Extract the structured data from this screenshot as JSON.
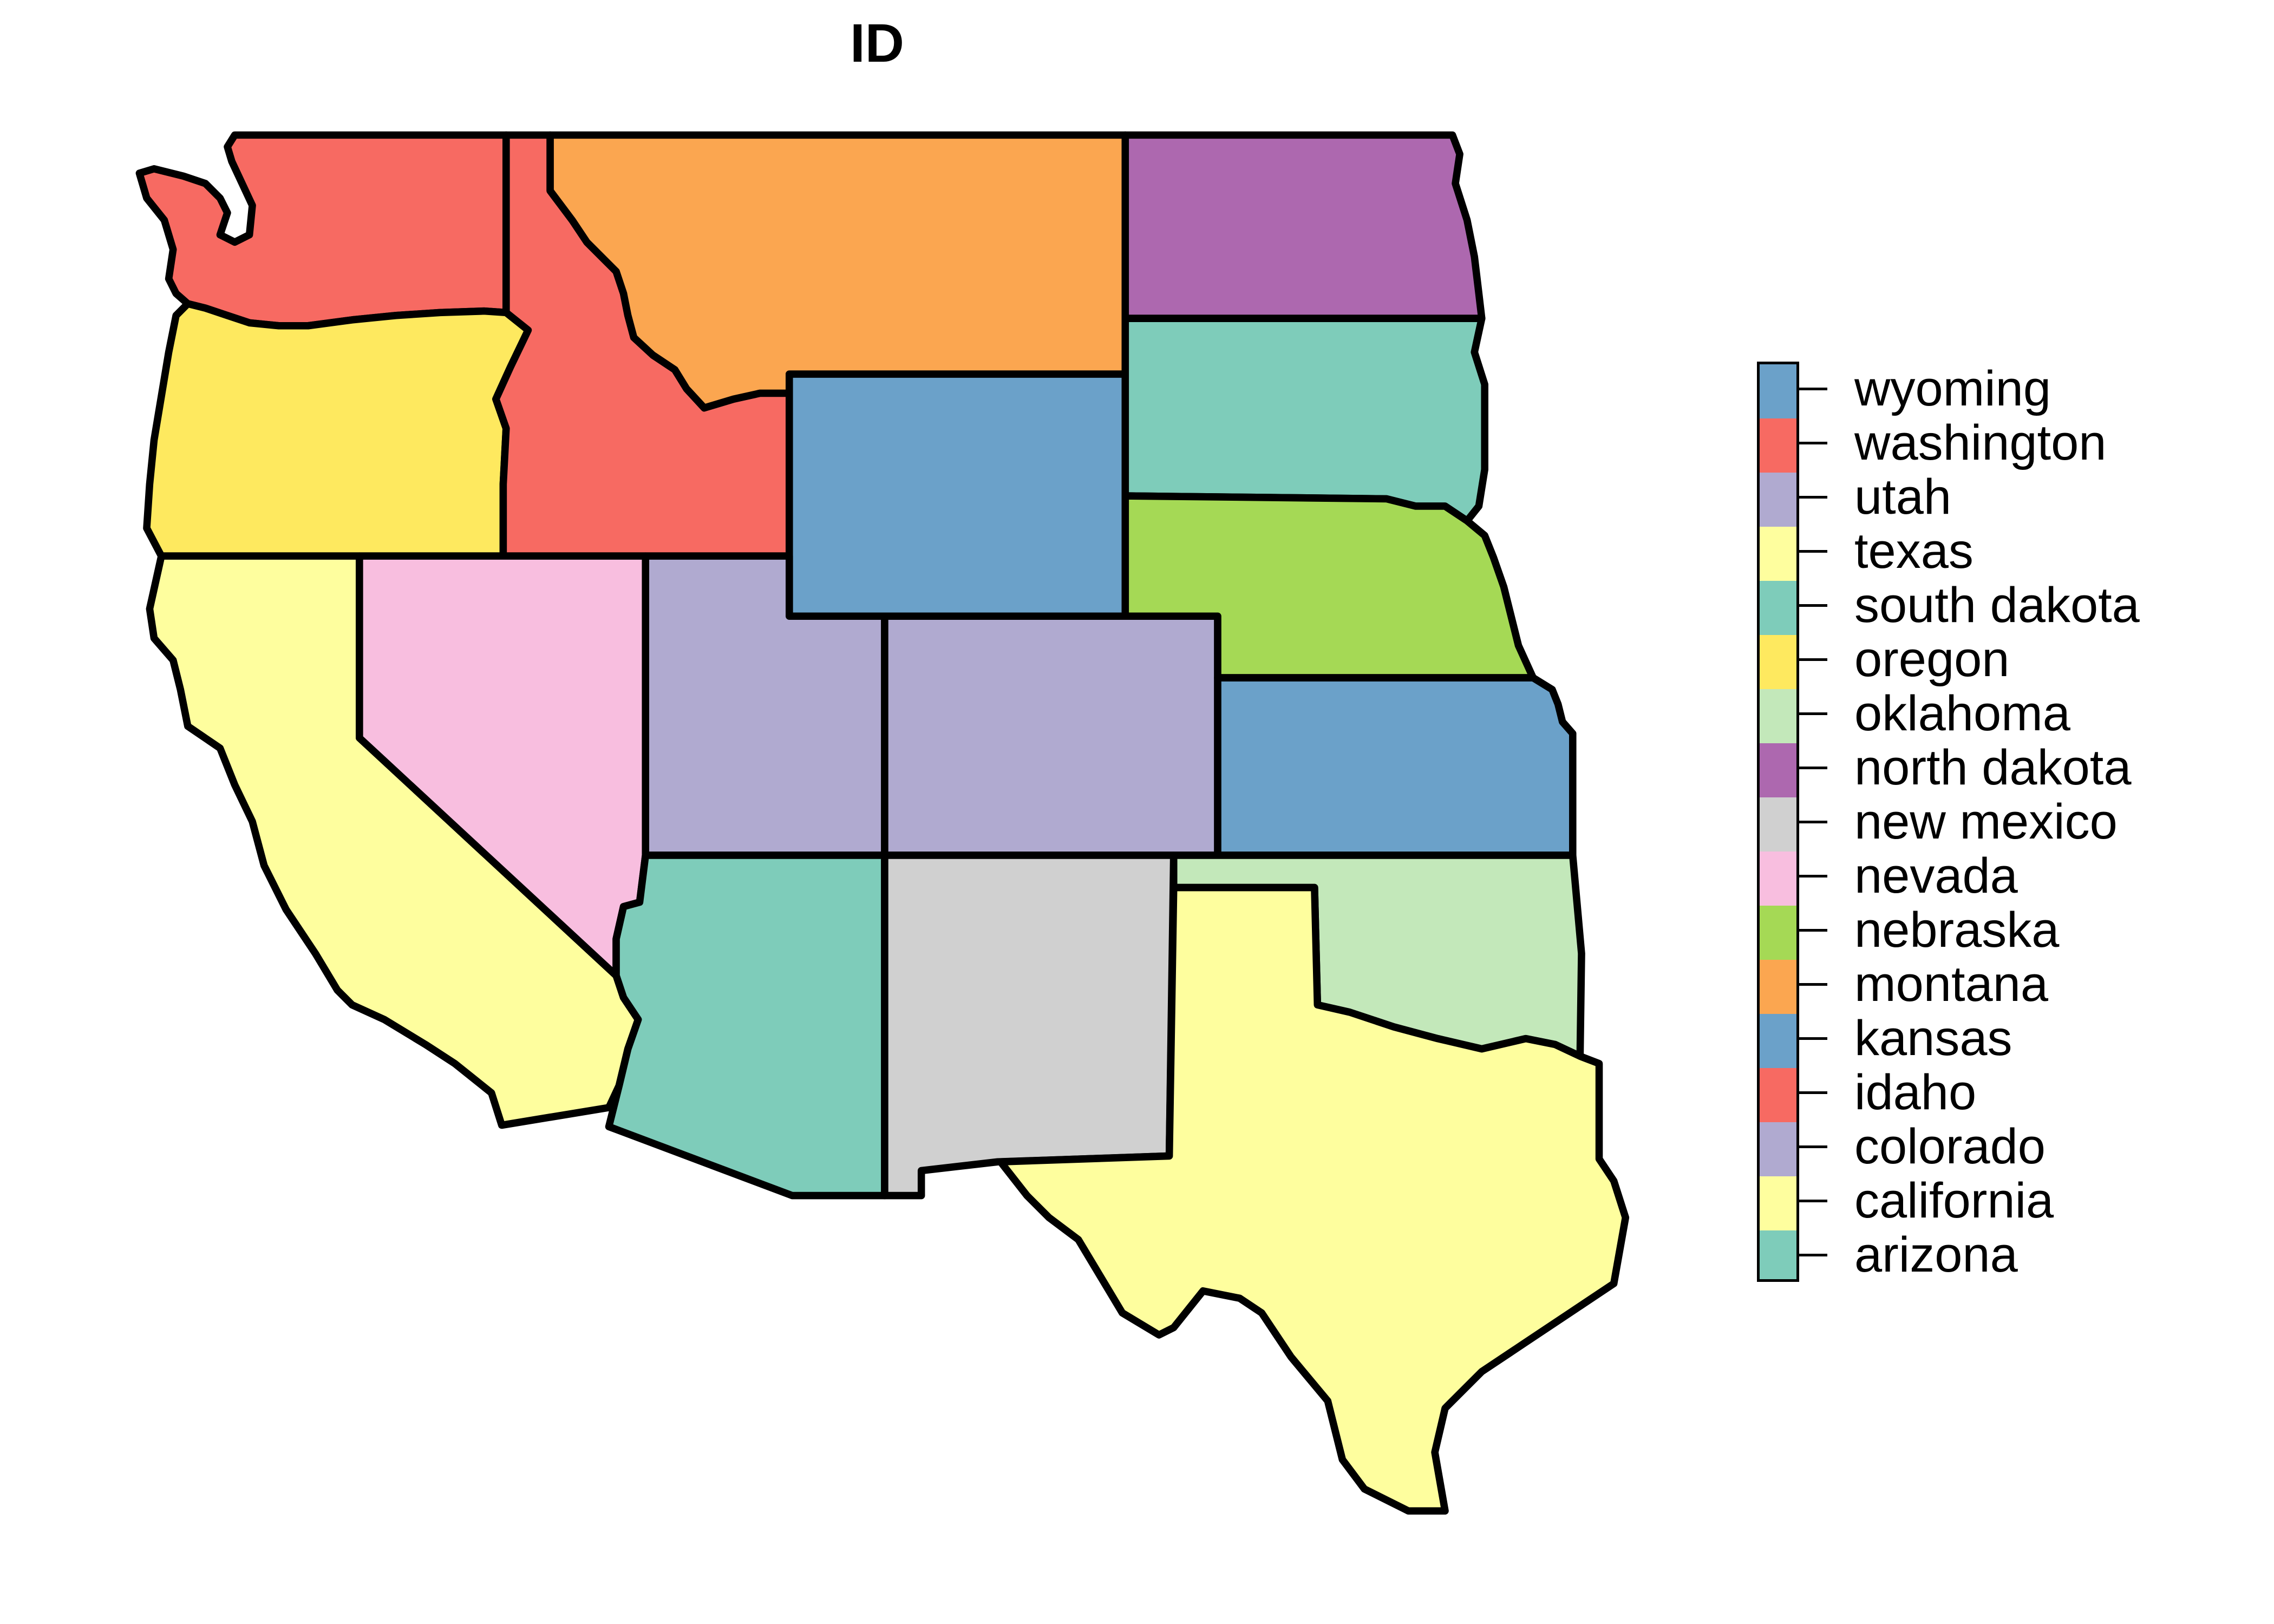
{
  "title": "ID",
  "legend": {
    "items": [
      {
        "label": "wyoming",
        "color": "#6BA1C9"
      },
      {
        "label": "washington",
        "color": "#F76A62"
      },
      {
        "label": "utah",
        "color": "#B0AAD0"
      },
      {
        "label": "texas",
        "color": "#FEFE9E"
      },
      {
        "label": "south dakota",
        "color": "#7ECCBA"
      },
      {
        "label": "oregon",
        "color": "#FEE95F"
      },
      {
        "label": "oklahoma",
        "color": "#C3E8BA"
      },
      {
        "label": "north dakota",
        "color": "#AD68AF"
      },
      {
        "label": "new mexico",
        "color": "#D0D0D0"
      },
      {
        "label": "nevada",
        "color": "#F8BEDF"
      },
      {
        "label": "nebraska",
        "color": "#A5D955"
      },
      {
        "label": "montana",
        "color": "#FBA650"
      },
      {
        "label": "kansas",
        "color": "#6BA1C9"
      },
      {
        "label": "idaho",
        "color": "#F76A62"
      },
      {
        "label": "colorado",
        "color": "#B0AAD0"
      },
      {
        "label": "california",
        "color": "#FEFE9E"
      },
      {
        "label": "arizona",
        "color": "#7ECCBA"
      }
    ]
  },
  "regions": [
    {
      "name": "washington",
      "color": "#F76A62"
    },
    {
      "name": "oregon",
      "color": "#FEE95F"
    },
    {
      "name": "california",
      "color": "#FEFE9E"
    },
    {
      "name": "idaho",
      "color": "#F76A62"
    },
    {
      "name": "nevada",
      "color": "#F8BEDF"
    },
    {
      "name": "montana",
      "color": "#FBA650"
    },
    {
      "name": "wyoming",
      "color": "#6BA1C9"
    },
    {
      "name": "utah",
      "color": "#B0AAD0"
    },
    {
      "name": "colorado",
      "color": "#B0AAD0"
    },
    {
      "name": "arizona",
      "color": "#7ECCBA"
    },
    {
      "name": "new mexico",
      "color": "#D0D0D0"
    },
    {
      "name": "north dakota",
      "color": "#AD68AF"
    },
    {
      "name": "south dakota",
      "color": "#7ECCBA"
    },
    {
      "name": "nebraska",
      "color": "#A5D955"
    },
    {
      "name": "kansas",
      "color": "#6BA1C9"
    },
    {
      "name": "oklahoma",
      "color": "#C3E8BA"
    },
    {
      "name": "texas",
      "color": "#FEFE9E"
    }
  ]
}
